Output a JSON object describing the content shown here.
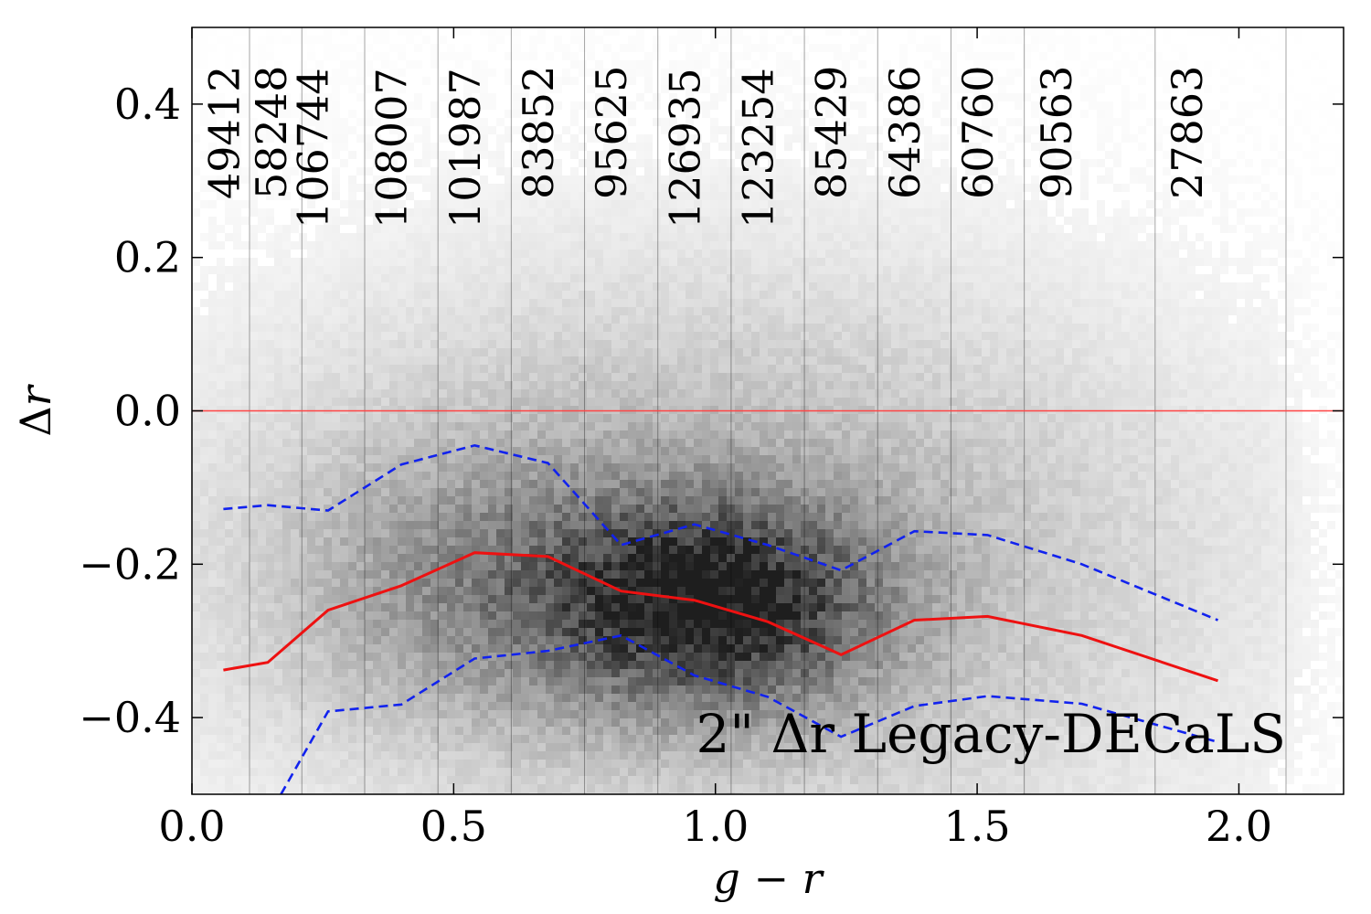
{
  "chart_data": {
    "type": "scatter",
    "title": "",
    "xlabel": "g − r",
    "ylabel": "Δr",
    "xlim": [
      0.0,
      2.2
    ],
    "ylim": [
      -0.5,
      0.5
    ],
    "xticks": [
      {
        "value": 0.0,
        "label": "0.0"
      },
      {
        "value": 0.5,
        "label": "0.5"
      },
      {
        "value": 1.0,
        "label": "1.0"
      },
      {
        "value": 1.5,
        "label": "1.5"
      },
      {
        "value": 2.0,
        "label": "2.0"
      }
    ],
    "yticks": [
      {
        "value": -0.4,
        "label": "−0.4"
      },
      {
        "value": -0.2,
        "label": "−0.2"
      },
      {
        "value": 0.0,
        "label": "0.0"
      },
      {
        "value": 0.2,
        "label": "0.2"
      },
      {
        "value": 0.4,
        "label": "0.4"
      }
    ],
    "annotation": "2\" Δr Legacy-DECaLS",
    "reference_line": {
      "y": 0.0,
      "color": "#ff4444"
    },
    "bin_edges": [
      0.11,
      0.21,
      0.33,
      0.47,
      0.61,
      0.75,
      0.89,
      1.03,
      1.17,
      1.31,
      1.45,
      1.59,
      1.84,
      2.09
    ],
    "bin_counts": [
      {
        "x": 0.06,
        "label": "49412",
        "row": 0
      },
      {
        "x": 0.15,
        "label": "58248",
        "row": 0
      },
      {
        "x": 0.23,
        "label": "106744",
        "row": 1
      },
      {
        "x": 0.38,
        "label": "108007",
        "row": 1
      },
      {
        "x": 0.52,
        "label": "101987",
        "row": 1
      },
      {
        "x": 0.66,
        "label": "83852",
        "row": 0
      },
      {
        "x": 0.8,
        "label": "95625",
        "row": 0
      },
      {
        "x": 0.94,
        "label": "126935",
        "row": 1
      },
      {
        "x": 1.08,
        "label": "123254",
        "row": 1
      },
      {
        "x": 1.22,
        "label": "85429",
        "row": 0
      },
      {
        "x": 1.36,
        "label": "64386",
        "row": 0
      },
      {
        "x": 1.5,
        "label": "60760",
        "row": 0
      },
      {
        "x": 1.65,
        "label": "90563",
        "row": 0
      },
      {
        "x": 1.9,
        "label": "27863",
        "row": 0
      }
    ],
    "series": [
      {
        "role": "median",
        "color": "#ee1111",
        "style": "solid",
        "x": [
          0.06,
          0.145,
          0.26,
          0.4,
          0.54,
          0.68,
          0.82,
          0.96,
          1.1,
          1.24,
          1.38,
          1.52,
          1.7,
          1.96
        ],
        "y": [
          -0.338,
          -0.328,
          -0.26,
          -0.228,
          -0.185,
          -0.19,
          -0.235,
          -0.247,
          -0.275,
          -0.318,
          -0.273,
          -0.268,
          -0.293,
          -0.352
        ]
      },
      {
        "role": "upper",
        "color": "#1122ee",
        "style": "dashed",
        "x": [
          0.06,
          0.145,
          0.26,
          0.4,
          0.54,
          0.68,
          0.82,
          0.96,
          1.1,
          1.24,
          1.38,
          1.52,
          1.7,
          1.96
        ],
        "y": [
          -0.128,
          -0.123,
          -0.13,
          -0.07,
          -0.045,
          -0.068,
          -0.175,
          -0.148,
          -0.175,
          -0.208,
          -0.157,
          -0.162,
          -0.2,
          -0.273
        ]
      },
      {
        "role": "lower",
        "color": "#1122ee",
        "style": "dashed",
        "x": [
          0.17,
          0.26,
          0.4,
          0.54,
          0.68,
          0.82,
          0.96,
          1.1,
          1.24,
          1.38,
          1.52,
          1.7,
          1.96
        ],
        "y": [
          -0.5,
          -0.392,
          -0.383,
          -0.323,
          -0.313,
          -0.293,
          -0.345,
          -0.373,
          -0.425,
          -0.385,
          -0.372,
          -0.382,
          -0.432
        ]
      }
    ],
    "density": {
      "colormap": "greys",
      "peak": {
        "x": 1.0,
        "y": -0.25
      },
      "secondary_peak": {
        "x": 0.55,
        "y": -0.22
      }
    }
  }
}
